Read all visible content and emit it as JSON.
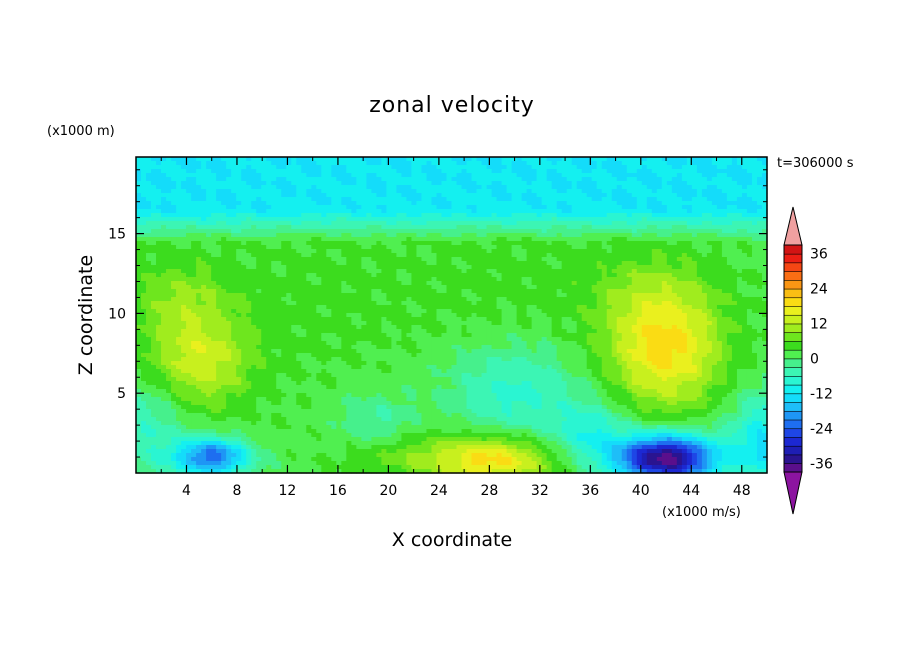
{
  "chart_data": {
    "type": "heatmap",
    "title": "zonal velocity",
    "xlabel": "X coordinate",
    "ylabel": "Z coordinate",
    "x_units": "(x1000 m/s)",
    "y_units": "(x1000 m)",
    "time_label": "t=306000 s",
    "xlim": [
      0,
      50
    ],
    "ylim": [
      0,
      19.8
    ],
    "xticks": [
      4,
      8,
      12,
      16,
      20,
      24,
      28,
      32,
      36,
      40,
      44,
      48
    ],
    "yticks": [
      5,
      10,
      15
    ],
    "colorbar": {
      "levels": [
        -39,
        -36,
        -33,
        -30,
        -27,
        -24,
        -21,
        -18,
        -15,
        -12,
        -9,
        -6,
        -3,
        0,
        3,
        6,
        9,
        12,
        15,
        18,
        21,
        24,
        27,
        30,
        33,
        36,
        39
      ],
      "colors": [
        "#5a0f8c",
        "#2a1490",
        "#1e1eb4",
        "#1c28d2",
        "#1e46e6",
        "#1e6ef0",
        "#1e96f5",
        "#1ebef8",
        "#14dcfa",
        "#14f0f0",
        "#2af5d2",
        "#3cf5b4",
        "#46f08c",
        "#50ef50",
        "#3cdc1e",
        "#6ee61e",
        "#a0ec1e",
        "#c8f01e",
        "#eaf01e",
        "#fadc14",
        "#fabe14",
        "#fa9614",
        "#fa6e14",
        "#f54614",
        "#eb1e14",
        "#d21414"
      ],
      "tick_labels": [
        "36",
        "24",
        "12",
        "0",
        "-12",
        "-24",
        "-36"
      ],
      "tick_values": [
        36,
        24,
        12,
        0,
        -12,
        -24,
        -36
      ],
      "over_color": "#f0a0a0",
      "under_color": "#8c14a0",
      "extend": "both"
    },
    "features": [
      {
        "x": 5,
        "z": 7,
        "sx": 4,
        "sz": 3,
        "u": 12
      },
      {
        "x": 3.5,
        "z": 11,
        "sx": 4,
        "sz": 2.5,
        "u": 6
      },
      {
        "x": 42,
        "z": 7.5,
        "sx": 4.5,
        "sz": 3.5,
        "u": 16
      },
      {
        "x": 41,
        "z": 11,
        "sx": 5,
        "sz": 3,
        "u": 6
      },
      {
        "x": 28,
        "z": 0.8,
        "sx": 5,
        "sz": 1.5,
        "u": 18
      },
      {
        "x": 20,
        "z": 1.2,
        "sx": 4,
        "sz": 1.5,
        "u": 5
      },
      {
        "x": 42,
        "z": 0.9,
        "sx": 4,
        "sz": 1.5,
        "u": -40
      },
      {
        "x": 6,
        "z": 1,
        "sx": 3,
        "sz": 1.2,
        "u": -25
      },
      {
        "x": 30,
        "z": 5,
        "sx": 5,
        "sz": 3,
        "u": -9
      },
      {
        "x": 36,
        "z": 2.5,
        "sx": 3,
        "sz": 2,
        "u": -10
      },
      {
        "x": 19,
        "z": 3,
        "sx": 3,
        "sz": 2,
        "u": -6
      },
      {
        "x": 50,
        "z": 2,
        "sx": 3,
        "sz": 3,
        "u": -14
      },
      {
        "x": 1,
        "z": 3,
        "sx": 3,
        "sz": 3,
        "u": -8
      },
      {
        "x": 14,
        "z": 11,
        "sx": 8,
        "sz": 5,
        "u": 2
      },
      {
        "x": 29,
        "z": 12,
        "sx": 8,
        "sz": 4,
        "u": 2
      }
    ],
    "upper_layer": {
      "z_from": 14.5,
      "z_to": 16.5,
      "u_low": 2,
      "u_high": -12
    }
  }
}
